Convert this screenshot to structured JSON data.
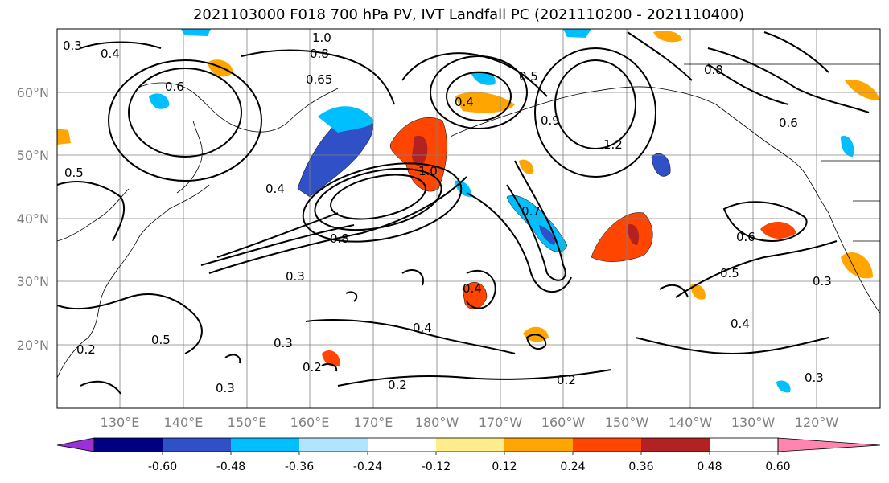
{
  "title": "2021103000 F018 700 hPa PV, IVT Landfall PC (2021110200 - 2021110400)",
  "lat_labels": [
    "60°N",
    "50°N",
    "40°N",
    "30°N",
    "20°N"
  ],
  "lon_labels": [
    "130°E",
    "140°E",
    "150°E",
    "160°E",
    "170°E",
    "180°W",
    "170°W",
    "160°W",
    "150°W",
    "140°W",
    "130°W",
    "120°W"
  ],
  "colorbar": {
    "colors": [
      "#9b30d8",
      "#000080",
      "#3050c8",
      "#00bfff",
      "#b3e4ff",
      "#ffffff",
      "#ffec8b",
      "#ffa500",
      "#ff4500",
      "#b22222",
      "#ff85b0"
    ],
    "tick_labels": [
      "-0.60",
      "-0.48",
      "-0.36",
      "-0.24",
      "-0.12",
      "0.12",
      "0.24",
      "0.36",
      "0.48",
      "0.60"
    ]
  },
  "contour_labels": [
    "0.3",
    "0.4",
    "0.6",
    "0.8",
    "1.0",
    "0.65",
    "0.4",
    "0.7",
    "0.9",
    "0.8",
    "1.2",
    "0.6",
    "0.5",
    "0.4",
    "0.3",
    "0.4",
    "0.2",
    "0.3",
    "0.2",
    "0.2",
    "0.3",
    "0.5",
    "0.4",
    "0.3",
    "0.4",
    "0.5",
    "0.2",
    "0.3",
    "0.8",
    "0.6",
    "1.0",
    "0.5"
  ]
}
